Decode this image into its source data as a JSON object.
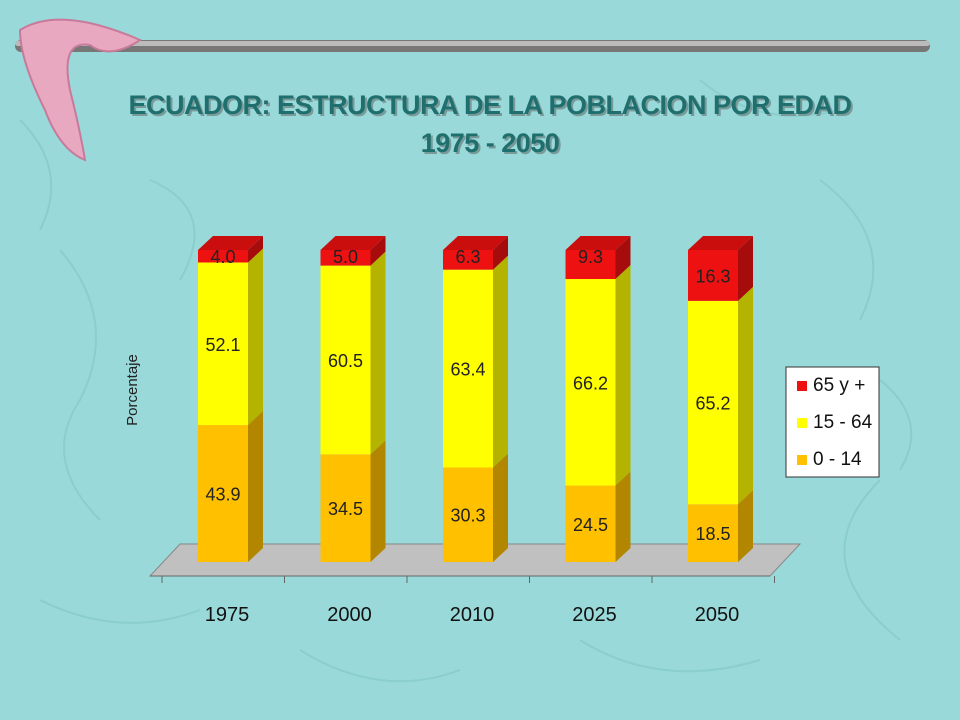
{
  "slide": {
    "title_line1": "ECUADOR: ESTRUCTURA DE LA POBLACION POR EDAD",
    "title_line2": "1975 - 2050",
    "background_color": "#99d9d9"
  },
  "chart_data": {
    "type": "bar",
    "stacked": true,
    "three_d": true,
    "title": "ECUADOR: ESTRUCTURA DE LA POBLACION POR EDAD 1975 - 2050",
    "xlabel": "",
    "ylabel": "Porcentaje",
    "ylim": [
      0,
      100
    ],
    "categories": [
      "1975",
      "2000",
      "2010",
      "2025",
      "2050"
    ],
    "series": [
      {
        "name": "0 - 14",
        "color": "#ffc000",
        "values": [
          43.9,
          34.5,
          30.3,
          24.5,
          18.5
        ],
        "labels": [
          "43.9",
          "34.5",
          "30.3",
          "24.5",
          "18.5"
        ]
      },
      {
        "name": "15 - 64",
        "color": "#ffff00",
        "values": [
          52.1,
          60.5,
          63.4,
          66.2,
          65.2
        ],
        "labels": [
          "52.1",
          "60.5",
          "63.4",
          "66.2",
          "65.2"
        ]
      },
      {
        "name": "65 y +",
        "color": "#ee1111",
        "values": [
          4.0,
          5.0,
          6.3,
          9.3,
          16.3
        ],
        "labels": [
          "4.0",
          "5.0",
          "6.3",
          "9.3",
          "16.3"
        ]
      }
    ],
    "legend": {
      "position": "right",
      "order": [
        "65 y +",
        "15 - 64",
        "0 - 14"
      ]
    },
    "grid": false
  }
}
